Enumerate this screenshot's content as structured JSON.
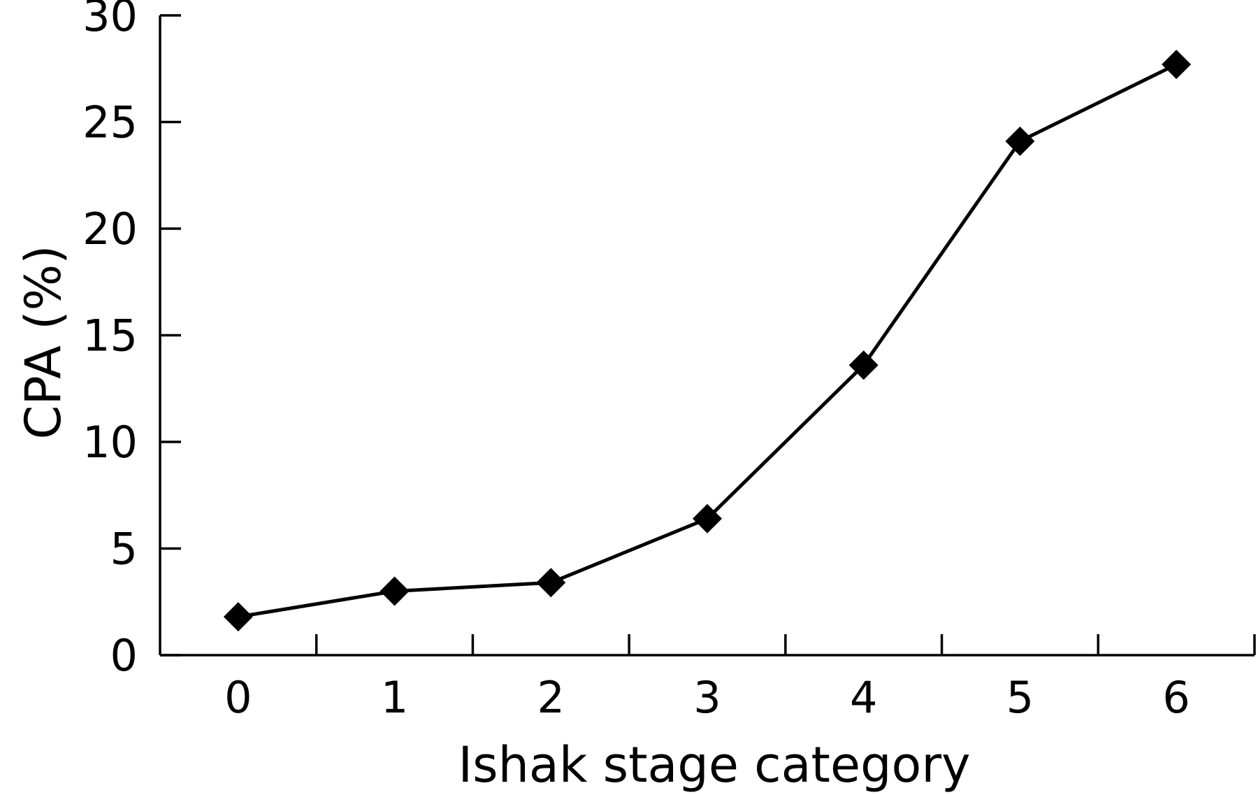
{
  "chart_data": {
    "type": "line",
    "title": "",
    "xlabel": "Ishak stage category",
    "ylabel": "CPA (%)",
    "x": [
      0,
      1,
      2,
      3,
      4,
      5,
      6
    ],
    "x_tick_labels": [
      "0",
      "1",
      "2",
      "3",
      "4",
      "5",
      "6"
    ],
    "y_ticks": [
      0,
      5,
      10,
      15,
      20,
      25,
      30
    ],
    "y_tick_labels": [
      "0",
      "5",
      "10",
      "15",
      "20",
      "25",
      "30"
    ],
    "ylim": [
      0,
      30
    ],
    "xlim": [
      -0.5,
      6.5
    ],
    "grid": false,
    "legend": "none",
    "marker": "diamond",
    "color": "#000000",
    "series": [
      {
        "values": [
          1.8,
          3.0,
          3.4,
          6.4,
          13.6,
          24.1,
          27.7
        ]
      }
    ]
  }
}
